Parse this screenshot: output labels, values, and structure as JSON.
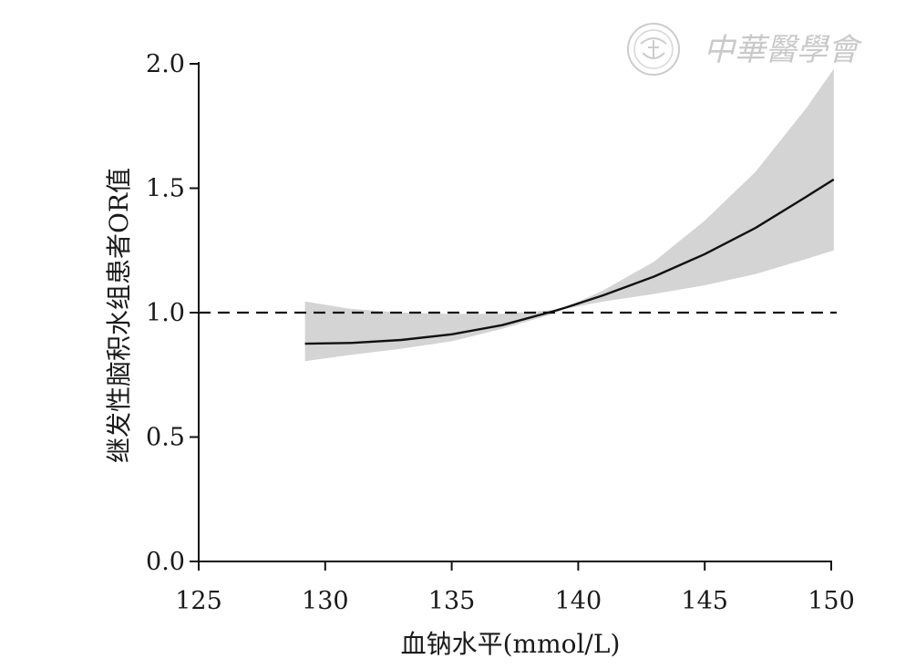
{
  "watermark": {
    "text": "中華醫學會",
    "color": "#cccccc"
  },
  "chart_data": {
    "type": "line",
    "title": "",
    "xlabel": "血钠水平(mmol/L)",
    "ylabel": "继发性脑积水组患者OR值",
    "xlim": [
      125,
      150
    ],
    "ylim": [
      0,
      2.0
    ],
    "xticks": [
      125,
      130,
      135,
      140,
      145,
      150
    ],
    "yticks": [
      0.0,
      0.5,
      1.0,
      1.5,
      2.0
    ],
    "xtick_labels": [
      "125",
      "130",
      "135",
      "140",
      "145",
      "150"
    ],
    "ytick_labels": [
      "0.0",
      "0.5",
      "1.0",
      "1.5",
      "2.0"
    ],
    "reference_line": {
      "y": 1.0,
      "style": "dashed"
    },
    "grid": false,
    "series": [
      {
        "x": [
          129.2,
          131,
          133,
          135,
          137,
          139,
          139.5,
          141,
          143,
          145,
          147,
          149,
          150.1
        ],
        "y": [
          0.875,
          0.878,
          0.89,
          0.913,
          0.95,
          1.005,
          1.02,
          1.07,
          1.145,
          1.235,
          1.34,
          1.465,
          1.535
        ],
        "lower": [
          0.805,
          0.83,
          0.855,
          0.885,
          0.935,
          0.995,
          1.015,
          1.045,
          1.075,
          1.11,
          1.155,
          1.215,
          1.25
        ],
        "upper": [
          1.045,
          1.015,
          1.0,
          0.995,
          0.995,
          1.01,
          1.02,
          1.09,
          1.205,
          1.37,
          1.565,
          1.82,
          1.98
        ],
        "line_color": "#111111",
        "band_color": "#d4d4d4"
      }
    ]
  }
}
